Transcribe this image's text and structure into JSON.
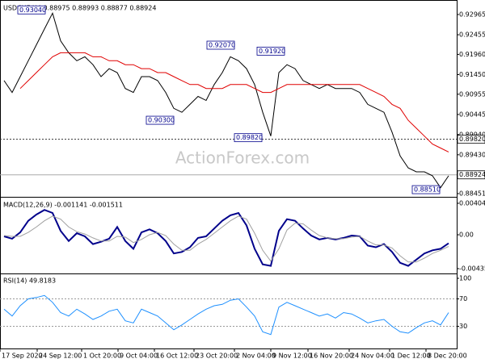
{
  "chart_data": [
    {
      "type": "line",
      "title": "USDCHF,H4 0.88975 0.88993 0.88877 0.88924",
      "watermark": "ActionForex.com",
      "x": [
        0,
        1,
        2,
        3,
        4,
        5,
        6,
        7,
        8,
        9,
        10,
        11,
        12,
        13,
        14,
        15,
        16,
        17,
        18,
        19,
        20,
        21,
        22,
        23,
        24,
        25,
        26,
        27,
        28,
        29,
        30,
        31,
        32,
        33,
        34,
        35,
        36,
        37,
        38,
        39,
        40,
        41,
        42,
        43,
        44,
        45,
        46,
        47,
        48,
        49,
        50,
        51,
        52,
        53,
        54,
        55
      ],
      "xlim": [
        -0.5,
        56
      ],
      "xticks": [
        {
          "value": -0.5,
          "label": "17 Sep 2020"
        },
        {
          "value": 4.1,
          "label": "24 Sep 12:00"
        },
        {
          "value": 9.6,
          "label": "1 Oct 20:00"
        },
        {
          "value": 14.1,
          "label": "9 Oct 04:00"
        },
        {
          "value": 18.6,
          "label": "16 Oct 12:00"
        },
        {
          "value": 23.5,
          "label": "23 Oct 20:00"
        },
        {
          "value": 28.5,
          "label": "2 Nov 04:00"
        },
        {
          "value": 33,
          "label": "9 Nov 12:00"
        },
        {
          "value": 37.6,
          "label": "16 Nov 20:00"
        },
        {
          "value": 42.7,
          "label": "24 Nov 04:00"
        },
        {
          "value": 47.7,
          "label": "1 Dec 12:00"
        },
        {
          "value": 52.2,
          "label": "8 Dec 20:00"
        }
      ],
      "ylim": [
        0.8839,
        0.9329
      ],
      "yticks": [
        0.92965,
        0.92455,
        {
          "value": 0.9196,
          "label": "0.91960"
        },
        {
          "value": 0.9145,
          "label": "0.91450"
        },
        0.90955,
        0.90445,
        {
          "value": 0.8994,
          "label": "0.89940"
        },
        {
          "value": 0.8943,
          "label": "0.89430"
        },
        0.88451
      ],
      "series": [
        {
          "name": "Close",
          "color": "#000000",
          "values": [
            0.913,
            0.91,
            0.914,
            0.918,
            0.922,
            0.926,
            0.93,
            0.923,
            0.92,
            0.918,
            0.919,
            0.917,
            0.914,
            0.916,
            0.915,
            0.911,
            0.91,
            0.914,
            0.914,
            0.913,
            0.91,
            0.906,
            0.905,
            0.907,
            0.909,
            0.908,
            0.912,
            0.915,
            0.919,
            0.918,
            0.916,
            0.912,
            0.905,
            0.899,
            0.915,
            0.917,
            0.916,
            0.913,
            0.912,
            0.911,
            0.912,
            0.911,
            0.911,
            0.911,
            0.91,
            0.907,
            0.906,
            0.905,
            0.9,
            0.894,
            0.891,
            0.89,
            0.89,
            0.889,
            0.886,
            0.889
          ]
        },
        {
          "name": "MA",
          "color": "#e00000",
          "values": [
            null,
            null,
            0.911,
            0.913,
            0.915,
            0.917,
            0.919,
            0.92,
            0.92,
            0.92,
            0.92,
            0.919,
            0.919,
            0.918,
            0.918,
            0.917,
            0.917,
            0.916,
            0.916,
            0.915,
            0.915,
            0.914,
            0.913,
            0.912,
            0.912,
            0.911,
            0.911,
            0.911,
            0.912,
            0.912,
            0.912,
            0.911,
            0.91,
            0.91,
            0.911,
            0.912,
            0.912,
            0.912,
            0.912,
            0.912,
            0.912,
            0.912,
            0.912,
            0.912,
            0.912,
            0.911,
            0.91,
            0.909,
            0.907,
            0.906,
            0.903,
            0.901,
            0.899,
            0.897,
            0.896,
            0.895
          ]
        }
      ],
      "hlines": [
        {
          "value": 0.8982,
          "label": "0.89820"
        },
        {
          "value": 0.88924,
          "label": "0.88924"
        }
      ],
      "annotations": [
        {
          "value": 0.9304,
          "label": "0.93040"
        },
        {
          "value": 0.9207,
          "label": "0.92070"
        },
        {
          "value": 0.9192,
          "label": "0.91920"
        },
        {
          "value": 0.903,
          "label": "0.90300"
        },
        {
          "value": 0.8982,
          "label": "0.89820"
        },
        {
          "value": 0.8851,
          "label": "0.88510"
        }
      ]
    },
    {
      "type": "line",
      "title": "MACD(12,26,9) -0.001141 -0.001511",
      "ylim": [
        -0.00487,
        0.00467
      ],
      "yticks": [
        0.004048,
        {
          "value": 0,
          "label": "0.00"
        },
        -0.004351
      ],
      "series": [
        {
          "name": "MACD",
          "color": "#00008b",
          "values": [
            -0.0002,
            -0.0005,
            0.0003,
            0.0018,
            0.0026,
            0.0032,
            0.0028,
            0.0005,
            -0.0008,
            0.0002,
            -0.0002,
            -0.0012,
            -0.0009,
            -0.0005,
            0.001,
            -0.0008,
            -0.0018,
            0.0003,
            0.0007,
            0.0002,
            -0.0008,
            -0.0024,
            -0.0022,
            -0.0016,
            -0.0004,
            -0.0002,
            0.0008,
            0.0018,
            0.0025,
            0.0028,
            0.0012,
            -0.0018,
            -0.0038,
            -0.004,
            0.0005,
            0.002,
            0.0018,
            0.0008,
            -0.0001,
            -0.0006,
            -0.0004,
            -0.0006,
            -0.0004,
            -0.0001,
            -0.0002,
            -0.0014,
            -0.0016,
            -0.0012,
            -0.0022,
            -0.0036,
            -0.004,
            -0.0032,
            -0.0024,
            -0.002,
            -0.0018,
            -0.0011
          ]
        },
        {
          "name": "Signal",
          "color": "#a0a0a0",
          "values": [
            -0.0001,
            -0.0002,
            -0.0002,
            0.0003,
            0.001,
            0.0018,
            0.0024,
            0.002,
            0.001,
            0.0004,
            0.0001,
            -0.0004,
            -0.0008,
            -0.0008,
            -0.0002,
            -0.0003,
            -0.001,
            -0.0006,
            0,
            0.0003,
            -0.0001,
            -0.0012,
            -0.002,
            -0.002,
            -0.0012,
            -0.0006,
            0.0002,
            0.001,
            0.0018,
            0.0024,
            0.002,
            0.0002,
            -0.002,
            -0.0034,
            -0.0018,
            0.0006,
            0.0015,
            0.0014,
            0.0006,
            -0.0001,
            -0.0004,
            -0.0005,
            -0.0005,
            -0.0003,
            -0.0002,
            -0.0008,
            -0.0013,
            -0.0013,
            -0.0017,
            -0.0027,
            -0.0035,
            -0.0035,
            -0.003,
            -0.0024,
            -0.002,
            -0.0015
          ]
        }
      ]
    },
    {
      "type": "line",
      "title": "RSI(14) 49.8183",
      "ylim": [
        -2.35,
        105.9
      ],
      "yticks": [
        100,
        70,
        30
      ],
      "levels": [
        70,
        30
      ],
      "series": [
        {
          "name": "RSI",
          "color": "#1e90ff",
          "values": [
            55,
            45,
            60,
            70,
            72,
            75,
            65,
            50,
            45,
            55,
            48,
            40,
            45,
            52,
            55,
            38,
            35,
            55,
            50,
            45,
            35,
            25,
            32,
            40,
            48,
            55,
            60,
            62,
            68,
            70,
            58,
            45,
            22,
            18,
            58,
            65,
            60,
            55,
            50,
            45,
            48,
            42,
            50,
            48,
            42,
            35,
            38,
            40,
            30,
            22,
            20,
            28,
            35,
            38,
            32,
            50
          ]
        }
      ]
    }
  ]
}
